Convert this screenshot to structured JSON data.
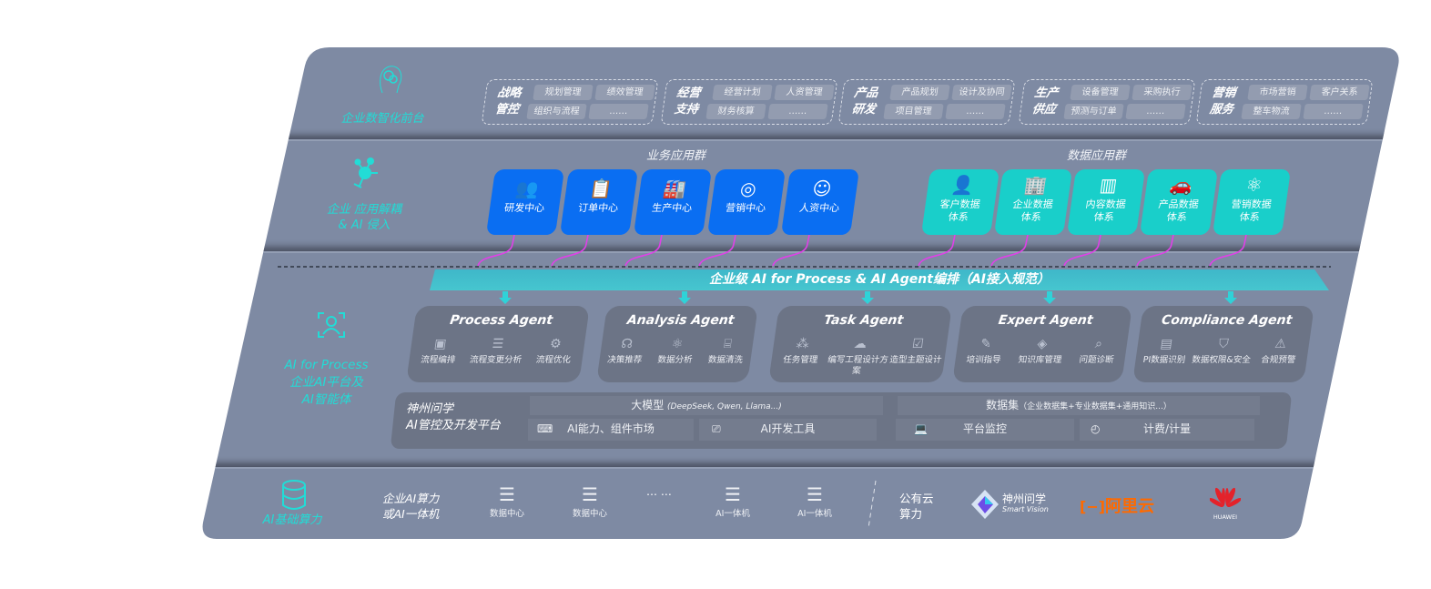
{
  "colors": {
    "panel": "#7e8aa3",
    "accent_cyan": "#22dcd6",
    "business_blue": "#0a6ef2",
    "data_teal": "#19cfca",
    "agent_box": "#6c7486",
    "connector_magenta": "#e040e8",
    "aliyun_orange": "#ff6a00",
    "huawei_red": "#e4222a"
  },
  "frontend": {
    "icon": "brain-head-icon",
    "label": "企业数智化前台",
    "groups": [
      {
        "title": [
          "战略",
          "管控"
        ],
        "items": [
          "规划管理",
          "绩效管理",
          "组织与流程",
          "……"
        ]
      },
      {
        "title": [
          "经营",
          "支持"
        ],
        "items": [
          "经营计划",
          "人资管理",
          "财务核算",
          "……"
        ]
      },
      {
        "title": [
          "产品",
          "研发"
        ],
        "items": [
          "产品规划",
          "设计及协同",
          "项目管理",
          "……"
        ]
      },
      {
        "title": [
          "生产",
          "供应"
        ],
        "items": [
          "设备管理",
          "采购执行",
          "预测与订单",
          "……"
        ]
      },
      {
        "title": [
          "营销",
          "服务"
        ],
        "items": [
          "市场营销",
          "客户关系",
          "整车物流",
          "……"
        ]
      }
    ]
  },
  "apps": {
    "icon": "molecule-icon",
    "label": [
      "企业 应用解耦",
      "& AI 侵入"
    ],
    "business_title": "业务应用群",
    "business": [
      {
        "label": "研发中心",
        "icon": "users-icon",
        "glyph": "👥"
      },
      {
        "label": "订单中心",
        "icon": "clipboard-icon",
        "glyph": "📋"
      },
      {
        "label": "生产中心",
        "icon": "factory-icon",
        "glyph": "🏭"
      },
      {
        "label": "营销中心",
        "icon": "target-icon",
        "glyph": "◎"
      },
      {
        "label": "人资中心",
        "icon": "person-icon",
        "glyph": "☺"
      }
    ],
    "data_title": "数据应用群",
    "data": [
      {
        "label": [
          "客户数据",
          "体系"
        ],
        "icon": "user-icon",
        "glyph": "👤"
      },
      {
        "label": [
          "企业数据",
          "体系"
        ],
        "icon": "building-icon",
        "glyph": "🏢"
      },
      {
        "label": [
          "内容数据",
          "体系"
        ],
        "icon": "books-icon",
        "glyph": "▥"
      },
      {
        "label": [
          "产品数据",
          "体系"
        ],
        "icon": "car-icon",
        "glyph": "🚗"
      },
      {
        "label": [
          "营销数据",
          "体系"
        ],
        "icon": "atom-icon",
        "glyph": "⚛"
      }
    ]
  },
  "banner": "企业级 AI for Process & AI Agent编排（AI接入规范）",
  "ai": {
    "icon": "face-scan-icon",
    "label": [
      "AI for Process",
      "企业AI平台及",
      "AI智能体"
    ],
    "agents": [
      {
        "name": "Process Agent",
        "items": [
          {
            "label": "流程编排",
            "icon": "flow-chart-icon",
            "glyph": "▣"
          },
          {
            "label": "流程变更分析",
            "icon": "list-settings-icon",
            "glyph": "☰"
          },
          {
            "label": "流程优化",
            "icon": "optimize-icon",
            "glyph": "⚙"
          }
        ]
      },
      {
        "name": "Analysis Agent",
        "items": [
          {
            "label": "决策推荐",
            "icon": "head-idea-icon",
            "glyph": "☊"
          },
          {
            "label": "数据分析",
            "icon": "atom-icon",
            "glyph": "⚛"
          },
          {
            "label": "数据清洗",
            "icon": "data-clean-icon",
            "glyph": "⌸"
          }
        ]
      },
      {
        "name": "Task Agent",
        "items": [
          {
            "label": "任务管理",
            "icon": "network-icon",
            "glyph": "⁂"
          },
          {
            "label": "编写工程设计方案",
            "icon": "cloud-icon",
            "glyph": "☁"
          },
          {
            "label": "造型主题设计",
            "icon": "checklist-icon",
            "glyph": "☑"
          }
        ]
      },
      {
        "name": "Expert Agent",
        "items": [
          {
            "label": "培训指导",
            "icon": "training-icon",
            "glyph": "✎"
          },
          {
            "label": "知识库管理",
            "icon": "layers-icon",
            "glyph": "◈"
          },
          {
            "label": "问题诊断",
            "icon": "diagnosis-icon",
            "glyph": "⌕"
          }
        ]
      },
      {
        "name": "Compliance Agent",
        "items": [
          {
            "label": "PI数据识别",
            "icon": "id-card-icon",
            "glyph": "▤"
          },
          {
            "label": "数据权限&安全",
            "icon": "shield-icon",
            "glyph": "⛉"
          },
          {
            "label": "合规预警",
            "icon": "alert-icon",
            "glyph": "⚠"
          }
        ]
      }
    ]
  },
  "platform": {
    "title": [
      "神州问学",
      "AI管控及开发平台"
    ],
    "model_title": "大模型",
    "model_note": "(DeepSeek, Qwen, Llama...)",
    "ai_market": "AI能力、组件市场",
    "ai_tools": "AI开发工具",
    "dataset_title": "数据集",
    "dataset_note": "（企业数据集+专业数据集+通用知识...）",
    "monitor": "平台监控",
    "billing": "计费/计量"
  },
  "infra": {
    "icon": "database-icon",
    "label": "AI基础算力",
    "enterprise": [
      "企业AI算力",
      "或AI一体机"
    ],
    "servers": [
      "数据中心",
      "数据中心",
      "AI一体机",
      "AI一体机"
    ],
    "ellipsis": "… …",
    "public": [
      "公有云",
      "算力"
    ],
    "vendors": {
      "szwx": "神州问学",
      "szwx_en": "Smart Vision",
      "aliyun": "阿里云",
      "huawei": "HUAWEI"
    }
  }
}
